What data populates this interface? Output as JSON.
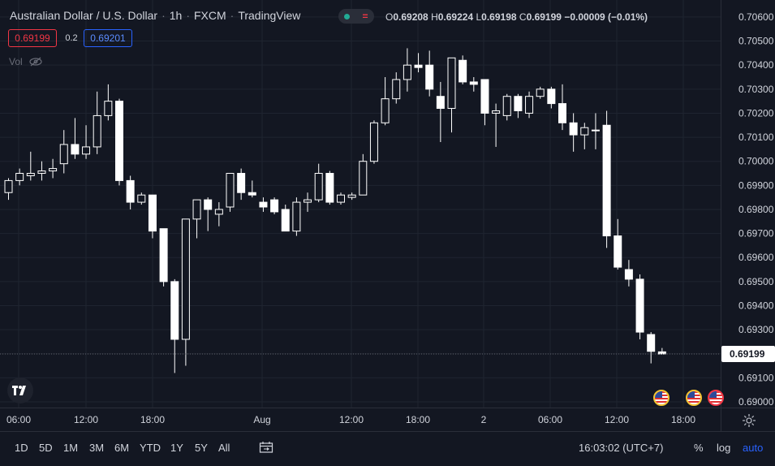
{
  "header": {
    "symbol": "Australian Dollar / U.S. Dollar",
    "interval": "1h",
    "exchange": "FXCM",
    "source": "TradingView",
    "ohlc": {
      "o_label": "O",
      "o": "0.69208",
      "h_label": "H",
      "h": "0.69224",
      "l_label": "L",
      "l": "0.69198",
      "c_label": "C",
      "c": "0.69199",
      "change": "−0.00009 (−0.01%)"
    },
    "bid": "0.69199",
    "spread": "0.2",
    "ask": "0.69201",
    "vol_label": "Vol"
  },
  "time_labels": [
    "06:00",
    "12:00",
    "18:00",
    "Aug",
    "12:00",
    "18:00",
    "2",
    "06:00",
    "12:00",
    "18:00"
  ],
  "bottom_bar": {
    "ranges": [
      "1D",
      "5D",
      "1M",
      "3M",
      "6M",
      "YTD",
      "1Y",
      "5Y",
      "All"
    ],
    "clock": "16:03:02 (UTC+7)",
    "percent": "%",
    "log": "log",
    "auto": "auto"
  },
  "colors": {
    "background": "#131722",
    "grid": "#1f2430",
    "text": "#d1d4dc",
    "candle_up_fill": "#131722",
    "candle_down_fill": "#ffffff",
    "candle_border": "#ffffff",
    "accent_blue": "#2962ff",
    "accent_red": "#f23645"
  },
  "chart_data": {
    "type": "candlestick",
    "title": "Australian Dollar / U.S. Dollar · 1h · FXCM",
    "ylabel": "",
    "ylim": [
      0.69,
      0.7062
    ],
    "y_ticks": [
      "0.70600",
      "0.70500",
      "0.70400",
      "0.70300",
      "0.70200",
      "0.70100",
      "0.70000",
      "0.69900",
      "0.69800",
      "0.69700",
      "0.69600",
      "0.69500",
      "0.69400",
      "0.69300",
      "0.69200",
      "0.69100",
      "0.69000"
    ],
    "last_price": "0.69199",
    "candles": [
      {
        "o": 0.6987,
        "h": 0.6993,
        "l": 0.6984,
        "c": 0.6992
      },
      {
        "o": 0.6992,
        "h": 0.6997,
        "l": 0.699,
        "c": 0.6995
      },
      {
        "o": 0.6994,
        "h": 0.7004,
        "l": 0.6992,
        "c": 0.6995
      },
      {
        "o": 0.6995,
        "h": 0.7,
        "l": 0.6992,
        "c": 0.6996
      },
      {
        "o": 0.6996,
        "h": 0.7001,
        "l": 0.6993,
        "c": 0.6997
      },
      {
        "o": 0.6999,
        "h": 0.7013,
        "l": 0.6995,
        "c": 0.7007
      },
      {
        "o": 0.7007,
        "h": 0.7018,
        "l": 0.7001,
        "c": 0.7003
      },
      {
        "o": 0.7003,
        "h": 0.7015,
        "l": 0.7001,
        "c": 0.7006
      },
      {
        "o": 0.7006,
        "h": 0.7029,
        "l": 0.7003,
        "c": 0.7019
      },
      {
        "o": 0.7019,
        "h": 0.7032,
        "l": 0.7017,
        "c": 0.7025
      },
      {
        "o": 0.7025,
        "h": 0.7026,
        "l": 0.699,
        "c": 0.6992
      },
      {
        "o": 0.6992,
        "h": 0.6994,
        "l": 0.698,
        "c": 0.6983
      },
      {
        "o": 0.6983,
        "h": 0.6987,
        "l": 0.6982,
        "c": 0.6986
      },
      {
        "o": 0.6986,
        "h": 0.6986,
        "l": 0.6968,
        "c": 0.6971
      },
      {
        "o": 0.6972,
        "h": 0.6972,
        "l": 0.6948,
        "c": 0.695
      },
      {
        "o": 0.695,
        "h": 0.6951,
        "l": 0.6912,
        "c": 0.6926
      },
      {
        "o": 0.6926,
        "h": 0.6976,
        "l": 0.6915,
        "c": 0.6976
      },
      {
        "o": 0.6976,
        "h": 0.6984,
        "l": 0.6968,
        "c": 0.6984
      },
      {
        "o": 0.6984,
        "h": 0.6985,
        "l": 0.6971,
        "c": 0.698
      },
      {
        "o": 0.6978,
        "h": 0.6983,
        "l": 0.6973,
        "c": 0.698
      },
      {
        "o": 0.6981,
        "h": 0.6995,
        "l": 0.6979,
        "c": 0.6995
      },
      {
        "o": 0.6995,
        "h": 0.6997,
        "l": 0.6984,
        "c": 0.6987
      },
      {
        "o": 0.6987,
        "h": 0.6992,
        "l": 0.6985,
        "c": 0.6986
      },
      {
        "o": 0.6983,
        "h": 0.6985,
        "l": 0.6979,
        "c": 0.6981
      },
      {
        "o": 0.6984,
        "h": 0.6985,
        "l": 0.6978,
        "c": 0.6979
      },
      {
        "o": 0.698,
        "h": 0.6982,
        "l": 0.6971,
        "c": 0.6971
      },
      {
        "o": 0.6971,
        "h": 0.6985,
        "l": 0.6969,
        "c": 0.6983
      },
      {
        "o": 0.6983,
        "h": 0.6987,
        "l": 0.6979,
        "c": 0.6984
      },
      {
        "o": 0.6984,
        "h": 0.6999,
        "l": 0.6983,
        "c": 0.6995
      },
      {
        "o": 0.6995,
        "h": 0.6996,
        "l": 0.6982,
        "c": 0.6983
      },
      {
        "o": 0.6983,
        "h": 0.6987,
        "l": 0.6982,
        "c": 0.6986
      },
      {
        "o": 0.6985,
        "h": 0.6987,
        "l": 0.6984,
        "c": 0.6986
      },
      {
        "o": 0.6986,
        "h": 0.7003,
        "l": 0.6986,
        "c": 0.7
      },
      {
        "o": 0.7,
        "h": 0.7017,
        "l": 0.6999,
        "c": 0.7016
      },
      {
        "o": 0.7016,
        "h": 0.7035,
        "l": 0.7015,
        "c": 0.7026
      },
      {
        "o": 0.7026,
        "h": 0.7037,
        "l": 0.7024,
        "c": 0.7034
      },
      {
        "o": 0.7034,
        "h": 0.7047,
        "l": 0.7029,
        "c": 0.704
      },
      {
        "o": 0.704,
        "h": 0.7045,
        "l": 0.7037,
        "c": 0.7039
      },
      {
        "o": 0.704,
        "h": 0.7046,
        "l": 0.7027,
        "c": 0.703
      },
      {
        "o": 0.7027,
        "h": 0.7033,
        "l": 0.7008,
        "c": 0.7022
      },
      {
        "o": 0.7022,
        "h": 0.7043,
        "l": 0.7012,
        "c": 0.7043
      },
      {
        "o": 0.7042,
        "h": 0.7044,
        "l": 0.7032,
        "c": 0.7033
      },
      {
        "o": 0.7033,
        "h": 0.7035,
        "l": 0.7029,
        "c": 0.7032
      },
      {
        "o": 0.7034,
        "h": 0.7034,
        "l": 0.7015,
        "c": 0.702
      },
      {
        "o": 0.702,
        "h": 0.7024,
        "l": 0.7006,
        "c": 0.7021
      },
      {
        "o": 0.7019,
        "h": 0.7028,
        "l": 0.7017,
        "c": 0.7027
      },
      {
        "o": 0.7027,
        "h": 0.7028,
        "l": 0.7018,
        "c": 0.7021
      },
      {
        "o": 0.702,
        "h": 0.7029,
        "l": 0.7018,
        "c": 0.7027
      },
      {
        "o": 0.7027,
        "h": 0.7031,
        "l": 0.7026,
        "c": 0.703
      },
      {
        "o": 0.703,
        "h": 0.7031,
        "l": 0.7022,
        "c": 0.7024
      },
      {
        "o": 0.7024,
        "h": 0.7032,
        "l": 0.7013,
        "c": 0.7016
      },
      {
        "o": 0.7016,
        "h": 0.702,
        "l": 0.7004,
        "c": 0.7011
      },
      {
        "o": 0.7011,
        "h": 0.7016,
        "l": 0.7005,
        "c": 0.7014
      },
      {
        "o": 0.7013,
        "h": 0.702,
        "l": 0.7005,
        "c": 0.7013
      },
      {
        "o": 0.7015,
        "h": 0.7021,
        "l": 0.6964,
        "c": 0.6969
      },
      {
        "o": 0.6969,
        "h": 0.6976,
        "l": 0.6955,
        "c": 0.6956
      },
      {
        "o": 0.6955,
        "h": 0.6959,
        "l": 0.6948,
        "c": 0.6951
      },
      {
        "o": 0.6951,
        "h": 0.6953,
        "l": 0.6926,
        "c": 0.6929
      },
      {
        "o": 0.6928,
        "h": 0.6929,
        "l": 0.6916,
        "c": 0.6921
      },
      {
        "o": 0.69208,
        "h": 0.69224,
        "l": 0.69198,
        "c": 0.69199
      }
    ]
  }
}
